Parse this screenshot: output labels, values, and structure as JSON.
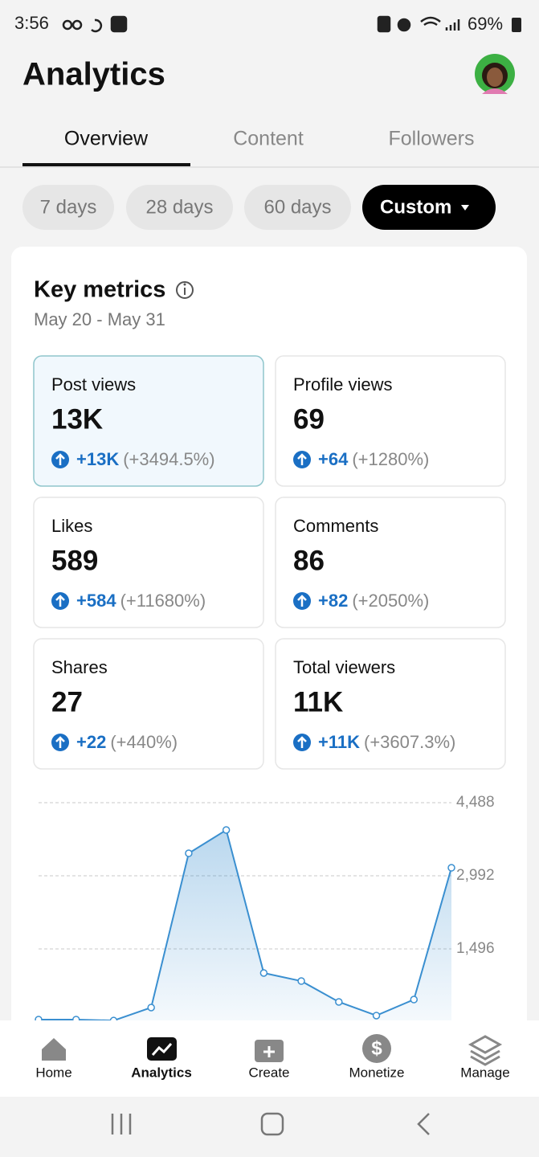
{
  "status_bar": {
    "time": "3:56",
    "battery": "69%"
  },
  "header": {
    "title": "Analytics"
  },
  "tabs": [
    "Overview",
    "Content",
    "Followers"
  ],
  "ranges": [
    "7 days",
    "28 days",
    "60 days",
    "Custom"
  ],
  "key_metrics": {
    "title": "Key metrics",
    "date_range": "May 20 - May 31",
    "cards": [
      {
        "label": "Post views",
        "value": "13K",
        "change": "+13K",
        "percent": "(+3494.5%)"
      },
      {
        "label": "Profile views",
        "value": "69",
        "change": "+64",
        "percent": "(+1280%)"
      },
      {
        "label": "Likes",
        "value": "589",
        "change": "+584",
        "percent": "(+11680%)"
      },
      {
        "label": "Comments",
        "value": "86",
        "change": "+82",
        "percent": "(+2050%)"
      },
      {
        "label": "Shares",
        "value": "27",
        "change": "+22",
        "percent": "(+440%)"
      },
      {
        "label": "Total viewers",
        "value": "11K",
        "change": "+11K",
        "percent": "(+3607.3%)"
      }
    ]
  },
  "chart_data": {
    "type": "line",
    "categories": [
      null,
      null,
      null,
      null,
      null,
      null,
      null,
      null,
      null,
      null,
      null,
      null
    ],
    "values": [
      50,
      50,
      30,
      296,
      3452,
      3929,
      1003,
      838,
      411,
      132,
      460,
      3156
    ],
    "color": "#3a8fd0",
    "ylim": [
      0,
      4488
    ],
    "yticks": [
      {
        "value": 1496,
        "label": "1,496"
      },
      {
        "value": 2992,
        "label": "2,992"
      },
      {
        "value": 4488,
        "label": "4,488"
      }
    ],
    "grid": true
  },
  "nav": [
    "Home",
    "Analytics",
    "Create",
    "Monetize",
    "Manage"
  ]
}
